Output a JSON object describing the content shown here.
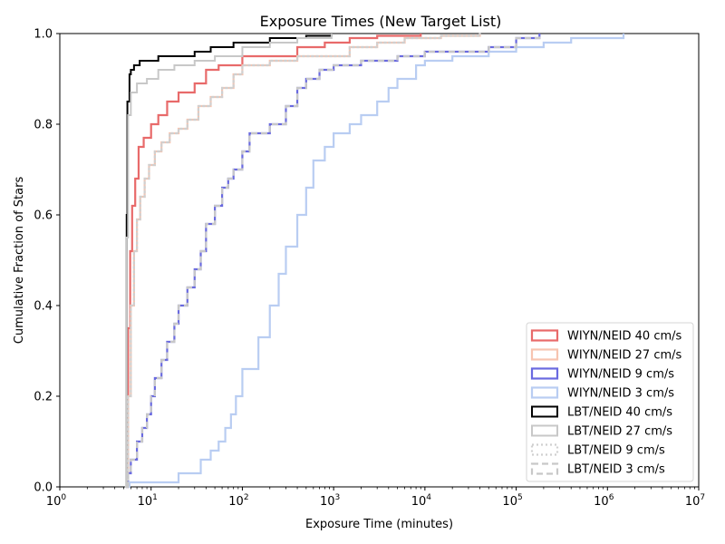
{
  "chart_data": {
    "type": "line",
    "title": "Exposure Times (New Target List)",
    "xlabel": "Exposure Time (minutes)",
    "ylabel": "Cumulative Fraction of Stars",
    "x_scale": "log",
    "xlim": [
      1,
      10000000
    ],
    "ylim": [
      0,
      1.0
    ],
    "grid": false,
    "legend_position": "lower-right",
    "x_ticks": [
      {
        "value": 1,
        "base": "10",
        "exp": "0"
      },
      {
        "value": 10,
        "base": "10",
        "exp": "1"
      },
      {
        "value": 100,
        "base": "10",
        "exp": "2"
      },
      {
        "value": 1000,
        "base": "10",
        "exp": "3"
      },
      {
        "value": 10000,
        "base": "10",
        "exp": "4"
      },
      {
        "value": 100000,
        "base": "10",
        "exp": "5"
      },
      {
        "value": 1000000,
        "base": "10",
        "exp": "6"
      },
      {
        "value": 10000000,
        "base": "10",
        "exp": "7"
      }
    ],
    "y_ticks": [
      {
        "value": 0.0,
        "label": "0.0"
      },
      {
        "value": 0.2,
        "label": "0.2"
      },
      {
        "value": 0.4,
        "label": "0.4"
      },
      {
        "value": 0.6,
        "label": "0.6"
      },
      {
        "value": 0.8,
        "label": "0.8"
      },
      {
        "value": 1.0,
        "label": "1.0"
      }
    ],
    "series": [
      {
        "name": "WIYN/NEID 40 cm/s",
        "color": "#e86a6a",
        "dash": "solid",
        "width": 2.2,
        "x": [
          5.3,
          5.6,
          5.9,
          6.2,
          6.7,
          7.3,
          8.3,
          10,
          12,
          15,
          20,
          30,
          40,
          55,
          80,
          100,
          200,
          400,
          800,
          1500,
          3000,
          9000
        ],
        "y": [
          0.0,
          0.35,
          0.52,
          0.62,
          0.68,
          0.75,
          0.77,
          0.8,
          0.82,
          0.85,
          0.87,
          0.89,
          0.92,
          0.93,
          0.93,
          0.95,
          0.95,
          0.97,
          0.98,
          0.99,
          0.995,
          1.0
        ]
      },
      {
        "name": "WIYN/NEID 27 cm/s",
        "color": "#f7c4b0",
        "dash": "solid",
        "width": 2.2,
        "x": [
          5.3,
          5.6,
          6.0,
          6.5,
          7.0,
          7.6,
          8.5,
          9.5,
          11,
          13,
          16,
          20,
          25,
          33,
          45,
          60,
          80,
          100,
          200,
          400,
          700,
          1500,
          3000,
          6000,
          15000,
          40000
        ],
        "y": [
          0.0,
          0.2,
          0.4,
          0.52,
          0.59,
          0.64,
          0.68,
          0.71,
          0.74,
          0.76,
          0.78,
          0.79,
          0.81,
          0.84,
          0.86,
          0.88,
          0.91,
          0.93,
          0.94,
          0.95,
          0.95,
          0.97,
          0.98,
          0.99,
          0.995,
          1.0
        ]
      },
      {
        "name": "WIYN/NEID 9 cm/s",
        "color": "#6a6ae0",
        "dash": "solid",
        "width": 2.2,
        "x": [
          5.3,
          5.6,
          6.0,
          7.0,
          8.0,
          9.0,
          10,
          11,
          13,
          15,
          18,
          20,
          25,
          30,
          35,
          40,
          50,
          60,
          70,
          80,
          100,
          120,
          150,
          200,
          300,
          400,
          500,
          700,
          1000,
          2000,
          5000,
          10000,
          50000,
          100000,
          180000
        ],
        "y": [
          0.0,
          0.03,
          0.06,
          0.1,
          0.13,
          0.16,
          0.2,
          0.24,
          0.28,
          0.32,
          0.36,
          0.4,
          0.44,
          0.48,
          0.52,
          0.58,
          0.62,
          0.66,
          0.68,
          0.7,
          0.74,
          0.78,
          0.78,
          0.8,
          0.84,
          0.88,
          0.9,
          0.92,
          0.93,
          0.94,
          0.95,
          0.96,
          0.97,
          0.99,
          1.0
        ]
      },
      {
        "name": "WIYN/NEID 3 cm/s",
        "color": "#b9cdf2",
        "dash": "solid",
        "width": 2.2,
        "x": [
          5.3,
          5.8,
          20,
          35,
          45,
          55,
          65,
          75,
          85,
          100,
          150,
          200,
          250,
          300,
          400,
          500,
          600,
          800,
          1000,
          1500,
          2000,
          3000,
          4000,
          5000,
          8000,
          10000,
          20000,
          50000,
          100000,
          200000,
          400000,
          1500000
        ],
        "y": [
          0.0,
          0.01,
          0.03,
          0.06,
          0.08,
          0.1,
          0.13,
          0.16,
          0.2,
          0.26,
          0.33,
          0.4,
          0.47,
          0.53,
          0.6,
          0.66,
          0.72,
          0.75,
          0.78,
          0.8,
          0.82,
          0.85,
          0.88,
          0.9,
          0.93,
          0.94,
          0.95,
          0.96,
          0.97,
          0.98,
          0.99,
          1.0
        ]
      },
      {
        "name": "LBT/NEID 40 cm/s",
        "color": "#000000",
        "dash": "solid",
        "width": 2.0,
        "x": [
          5.3,
          5.4,
          5.5,
          5.8,
          6.0,
          6.5,
          7.5,
          9,
          12,
          18,
          30,
          45,
          80,
          200,
          500,
          950
        ],
        "y": [
          0.0,
          0.6,
          0.85,
          0.91,
          0.92,
          0.93,
          0.94,
          0.94,
          0.95,
          0.95,
          0.96,
          0.97,
          0.98,
          0.99,
          0.995,
          1.0
        ]
      },
      {
        "name": "LBT/NEID 27 cm/s",
        "color": "#c8c8c8",
        "dash": "solid",
        "width": 2.0,
        "x": [
          5.3,
          5.4,
          5.6,
          6.0,
          7.0,
          9,
          12,
          18,
          30,
          50,
          100,
          200,
          400,
          950
        ],
        "y": [
          0.0,
          0.55,
          0.82,
          0.87,
          0.89,
          0.9,
          0.92,
          0.93,
          0.94,
          0.95,
          0.97,
          0.98,
          0.99,
          1.0
        ]
      },
      {
        "name": "LBT/NEID 9 cm/s",
        "color": "#d0d0d0",
        "dash": "dotted",
        "width": 2.2,
        "x": [
          5.3,
          5.6,
          6.0,
          6.5,
          7.0,
          7.6,
          8.5,
          9.5,
          11,
          13,
          16,
          20,
          25,
          33,
          45,
          60,
          80,
          100,
          200,
          400,
          700,
          1500,
          3000,
          6000,
          15000,
          40000
        ],
        "y": [
          0.0,
          0.2,
          0.4,
          0.52,
          0.59,
          0.64,
          0.68,
          0.71,
          0.74,
          0.76,
          0.78,
          0.79,
          0.81,
          0.84,
          0.86,
          0.88,
          0.91,
          0.93,
          0.94,
          0.95,
          0.95,
          0.97,
          0.98,
          0.99,
          0.995,
          1.0
        ]
      },
      {
        "name": "LBT/NEID 3 cm/s",
        "color": "#c8c8c8",
        "dash": "dashed",
        "width": 2.2,
        "x": [
          5.3,
          5.6,
          6.0,
          7.0,
          8.0,
          9.0,
          10,
          11,
          13,
          15,
          18,
          20,
          25,
          30,
          35,
          40,
          50,
          60,
          70,
          80,
          100,
          120,
          150,
          200,
          300,
          400,
          500,
          700,
          1000,
          2000,
          5000,
          10000,
          50000,
          100000,
          180000
        ],
        "y": [
          0.0,
          0.03,
          0.06,
          0.1,
          0.13,
          0.16,
          0.2,
          0.24,
          0.28,
          0.32,
          0.36,
          0.4,
          0.44,
          0.48,
          0.52,
          0.58,
          0.62,
          0.66,
          0.68,
          0.7,
          0.74,
          0.78,
          0.78,
          0.8,
          0.84,
          0.88,
          0.9,
          0.92,
          0.93,
          0.94,
          0.95,
          0.96,
          0.97,
          0.99,
          1.0
        ]
      }
    ]
  }
}
